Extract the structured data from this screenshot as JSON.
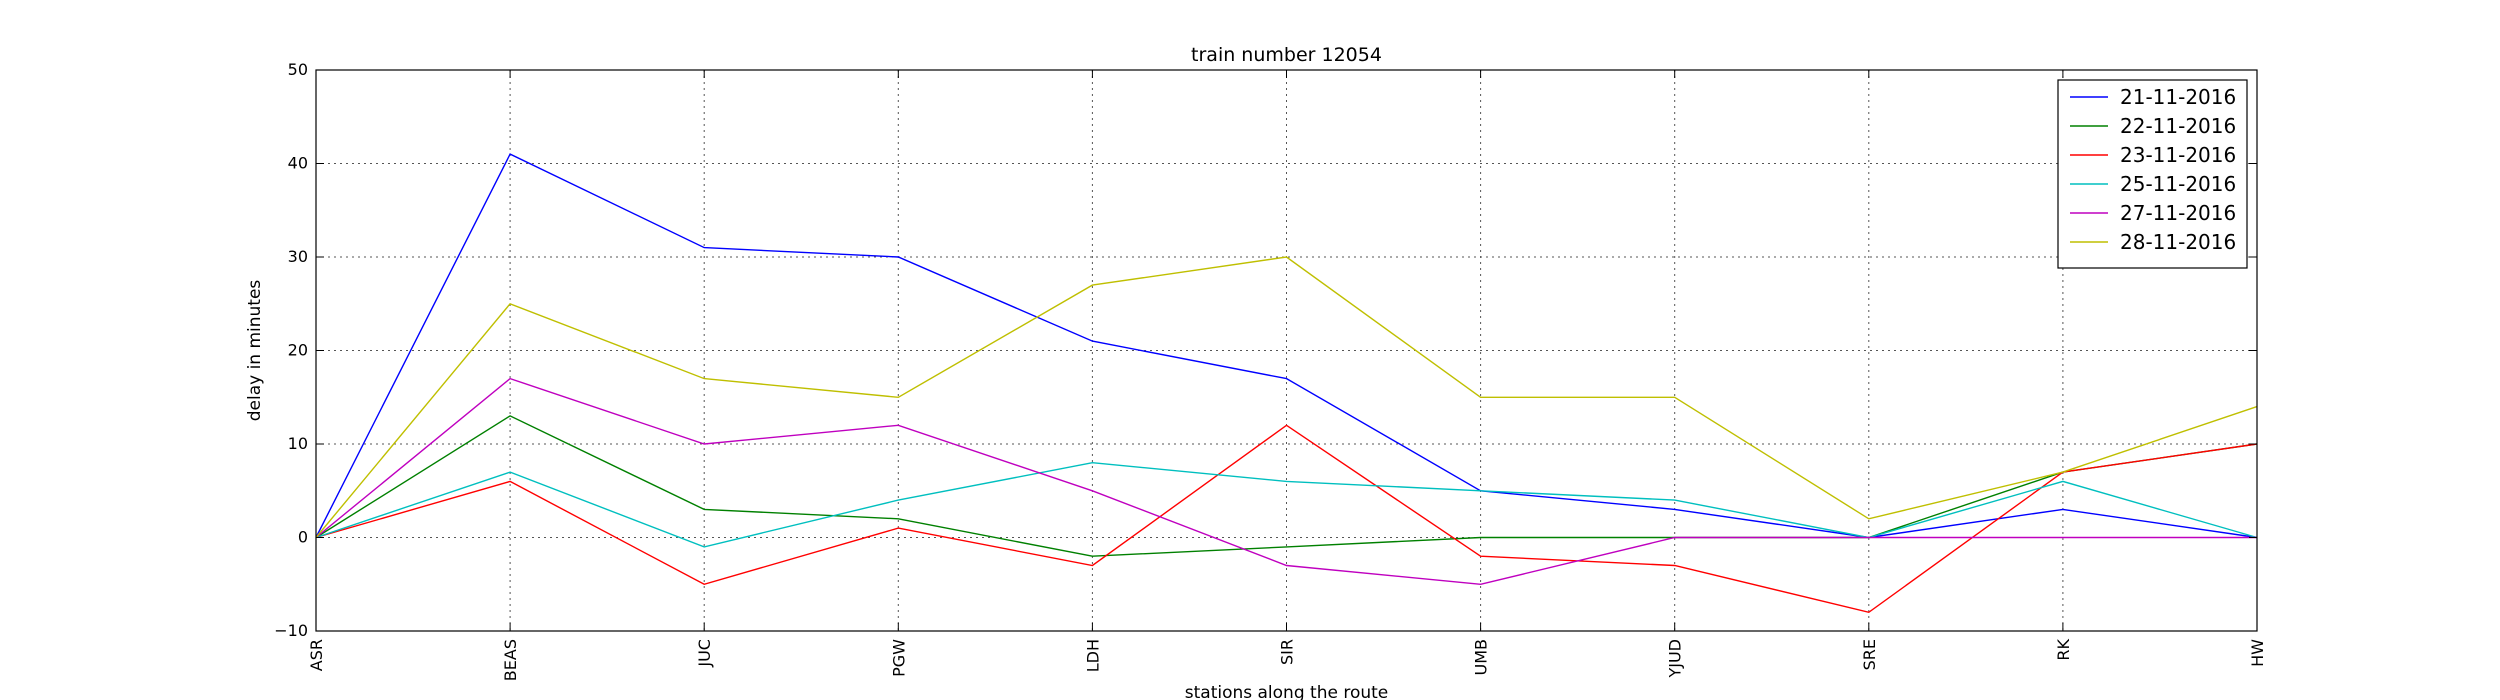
{
  "chart_data": {
    "type": "line",
    "title": "train number 12054",
    "xlabel": "stations along the route",
    "ylabel": "delay in minutes",
    "categories": [
      "ASR",
      "BEAS",
      "JUC",
      "PGW",
      "LDH",
      "SIR",
      "UMB",
      "YJUD",
      "SRE",
      "RK",
      "HW"
    ],
    "ylim": [
      -10,
      50
    ],
    "yticks": [
      -10,
      0,
      10,
      20,
      30,
      40,
      50
    ],
    "grid": true,
    "legend_position": "top-right",
    "series": [
      {
        "name": "21-11-2016",
        "color": "#0000ff",
        "values": [
          0,
          41,
          31,
          30,
          21,
          17,
          5,
          3,
          0,
          3,
          0
        ]
      },
      {
        "name": "22-11-2016",
        "color": "#008000",
        "values": [
          0,
          13,
          3,
          2,
          -2,
          -1,
          0,
          0,
          0,
          7,
          10
        ]
      },
      {
        "name": "23-11-2016",
        "color": "#ff0000",
        "values": [
          0,
          6,
          -5,
          1,
          -3,
          12,
          -2,
          -3,
          -8,
          7,
          10
        ]
      },
      {
        "name": "25-11-2016",
        "color": "#00bfbf",
        "values": [
          0,
          7,
          -1,
          4,
          8,
          6,
          5,
          4,
          0,
          6,
          0
        ]
      },
      {
        "name": "27-11-2016",
        "color": "#bf00bf",
        "values": [
          0,
          17,
          10,
          12,
          5,
          -3,
          -5,
          0,
          0,
          0,
          0
        ]
      },
      {
        "name": "28-11-2016",
        "color": "#bfbf00",
        "values": [
          0,
          25,
          17,
          15,
          27,
          30,
          15,
          15,
          2,
          7,
          14
        ]
      }
    ]
  }
}
